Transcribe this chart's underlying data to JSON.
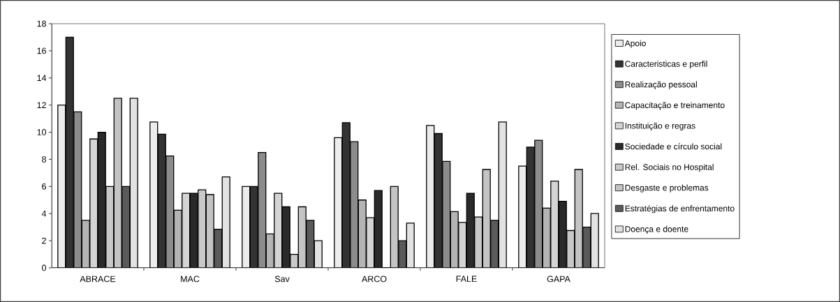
{
  "chart_data": {
    "type": "bar",
    "categories": [
      "ABRACE",
      "MAC",
      "Sav",
      "ARCO",
      "FALE",
      "GAPA"
    ],
    "ylim": [
      0,
      18
    ],
    "yticks": [
      0,
      2,
      4,
      6,
      8,
      10,
      12,
      14,
      16,
      18
    ],
    "grid": false,
    "legend": "right",
    "series": [
      {
        "name": "Apoio",
        "color": "#ececec",
        "values": [
          12,
          10.75,
          6,
          9.6,
          10.5,
          7.5
        ]
      },
      {
        "name": "Caracteristicas e perfil",
        "color": "#333333",
        "values": [
          17,
          9.85,
          6,
          10.7,
          9.9,
          8.9
        ]
      },
      {
        "name": "Realização pessoal",
        "color": "#8c8c8c",
        "values": [
          11.5,
          8.25,
          8.5,
          9.3,
          7.85,
          9.4
        ]
      },
      {
        "name": "Capacitação e treinamento",
        "color": "#b4b4b4",
        "values": [
          3.5,
          4.25,
          2.5,
          5,
          4.15,
          4.4
        ]
      },
      {
        "name": "Instituição e regras",
        "color": "#d4d4d4",
        "values": [
          9.5,
          5.5,
          5.5,
          3.7,
          3.35,
          6.4
        ]
      },
      {
        "name": "Sociedade e círculo social",
        "color": "#2a2a2a",
        "values": [
          10,
          5.5,
          4.5,
          5.7,
          5.5,
          4.9
        ]
      },
      {
        "name": "Rel. Sociais no Hospital",
        "color": "#c8c8c8",
        "values": [
          6,
          5.75,
          1,
          0,
          3.75,
          2.75
        ]
      },
      {
        "name": "Desgaste e problemas",
        "color": "#c4c4c4",
        "values": [
          12.5,
          5.4,
          4.5,
          6,
          7.25,
          7.25
        ]
      },
      {
        "name": "Estratégias de enfrentamento",
        "color": "#5a5a5a",
        "values": [
          6,
          2.85,
          3.5,
          2,
          3.5,
          3
        ]
      },
      {
        "name": "Doença e doente",
        "color": "#e2e2e2",
        "values": [
          12.5,
          6.7,
          2,
          3.3,
          10.75,
          4
        ]
      }
    ]
  }
}
